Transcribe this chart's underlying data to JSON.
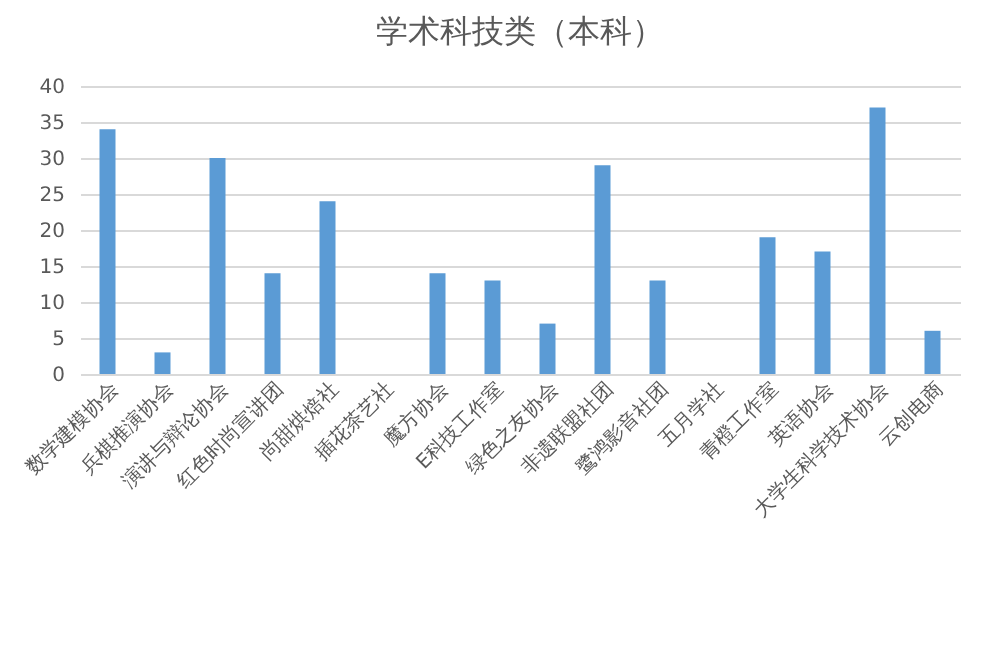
{
  "chart_data": {
    "type": "bar",
    "title": "学术科技类（本科）",
    "categories": [
      "数学建模协会",
      "兵棋推演协会",
      "演讲与辩论协会",
      "红色时尚宣讲团",
      "尚甜烘焙社",
      "插花茶艺社",
      "魔方协会",
      "E科技工作室",
      "绿色之友协会",
      "非遗联盟社团",
      "鹭鸿影音社团",
      "五月学社",
      "青橙工作室",
      "英语协会",
      "大学生科学技术协会",
      "云创电商"
    ],
    "values": [
      34,
      3,
      30,
      14,
      24,
      0,
      14,
      13,
      7,
      29,
      13,
      0,
      19,
      17,
      37,
      6
    ],
    "color": "#5b9bd5",
    "ylim": [
      0,
      40
    ],
    "yticks": [
      0,
      5,
      10,
      15,
      20,
      25,
      30,
      35,
      40
    ],
    "grid": "y"
  }
}
